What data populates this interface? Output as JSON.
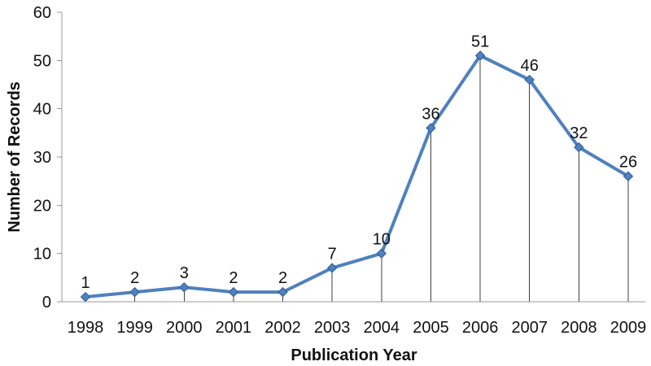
{
  "chart_data": {
    "type": "line",
    "xlabel": "Publication Year",
    "ylabel": "Number of Records",
    "categories": [
      "1998",
      "1999",
      "2000",
      "2001",
      "2002",
      "2003",
      "2004",
      "2005",
      "2006",
      "2007",
      "2008",
      "2009"
    ],
    "series": [
      {
        "name": "Number of Records",
        "values": [
          1,
          2,
          3,
          2,
          2,
          7,
          10,
          36,
          51,
          46,
          32,
          26
        ]
      }
    ],
    "data_labels": [
      1,
      2,
      3,
      2,
      2,
      7,
      10,
      36,
      51,
      46,
      32,
      26
    ],
    "ylim": [
      0,
      60
    ],
    "yticks": [
      0,
      10,
      20,
      30,
      40,
      50,
      60
    ],
    "grid": "off",
    "legend": "none",
    "marker": "diamond",
    "drop_lines": true,
    "colors": {
      "line": "#4F81BD",
      "marker_fill": "#4F81BD",
      "marker_border": "#2F5B93",
      "axis": "#999999",
      "drop_line": "#3F3F3F",
      "text": "#111111",
      "background": "#FFFFFF"
    }
  }
}
